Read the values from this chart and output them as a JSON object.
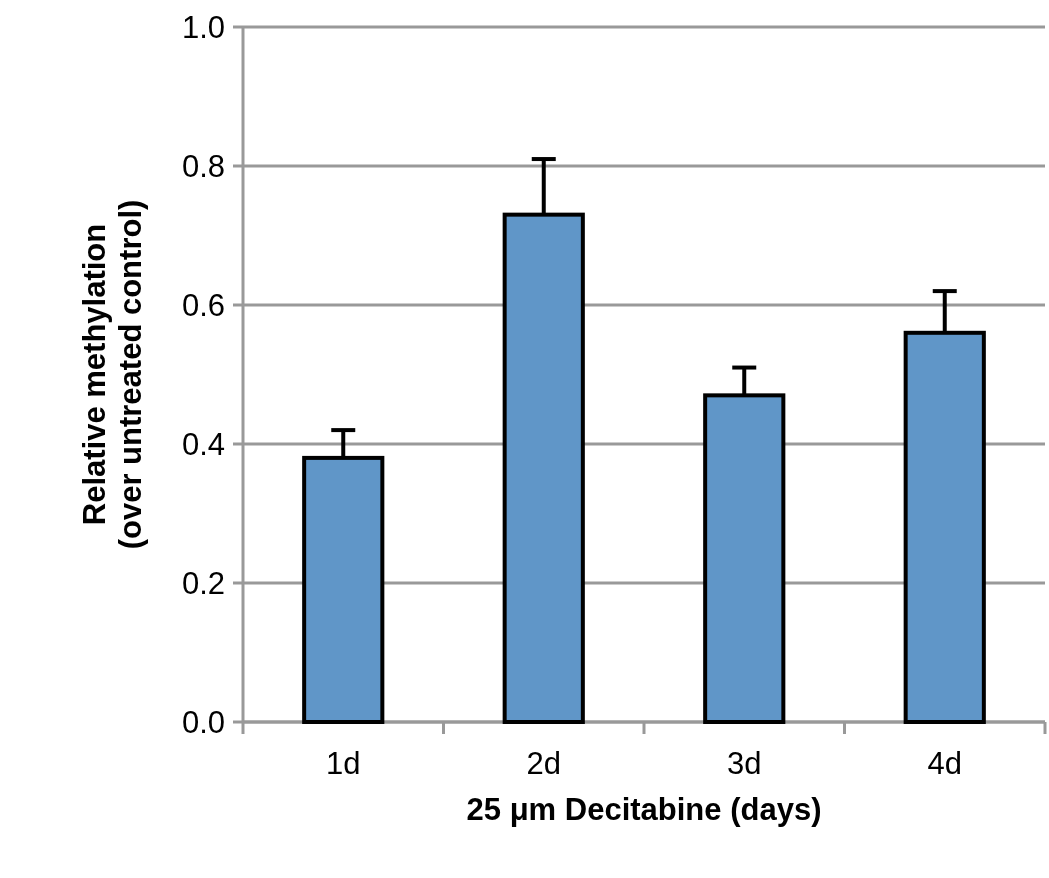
{
  "chart_data": {
    "type": "bar",
    "xlabel": "25 μm Decitabine (days)",
    "ylabel": "Relative methylation\n(over untreated control)",
    "categories": [
      "1d",
      "2d",
      "3d",
      "4d"
    ],
    "values": [
      0.38,
      0.73,
      0.47,
      0.56
    ],
    "errors": [
      [
        0.38,
        0.42
      ],
      [
        0.73,
        0.81
      ],
      [
        0.47,
        0.51
      ],
      [
        0.56,
        0.62
      ]
    ],
    "color": "#6096c8",
    "ylim": [
      0,
      1
    ],
    "yticks": [
      {
        "value": 0,
        "label": "0.0"
      },
      {
        "value": 0.2,
        "label": "0.2"
      },
      {
        "value": 0.4,
        "label": "0.4"
      },
      {
        "value": 0.6,
        "label": "0.6"
      },
      {
        "value": 0.8,
        "label": "0.8"
      },
      {
        "value": 1,
        "label": "1.0"
      }
    ],
    "grid": "y"
  }
}
